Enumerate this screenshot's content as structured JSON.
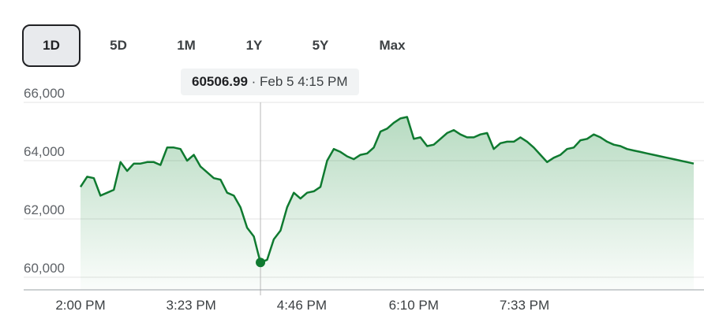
{
  "tabs": [
    {
      "label": "1D",
      "active": true
    },
    {
      "label": "5D",
      "active": false
    },
    {
      "label": "1M",
      "active": false
    },
    {
      "label": "1Y",
      "active": false
    },
    {
      "label": "5Y",
      "active": false
    },
    {
      "label": "Max",
      "active": false
    }
  ],
  "tooltip": {
    "value": "60506.99",
    "separator": " · ",
    "time": "Feb 5 4:15 PM"
  },
  "colors": {
    "line": "#0f7a30",
    "fill": "#1e8e3e",
    "grid": "#e3e3e3",
    "crosshair": "#b8b8b8"
  },
  "chart_data": {
    "type": "area",
    "title": "",
    "xlabel": "",
    "ylabel": "",
    "grid": true,
    "ylim": [
      59600,
      66500
    ],
    "yticks": [
      {
        "value": 66000,
        "label": "66,000"
      },
      {
        "value": 64000,
        "label": "64,000"
      },
      {
        "value": 62000,
        "label": "62,000"
      },
      {
        "value": 60000,
        "label": "60,000"
      }
    ],
    "xlim": [
      0,
      460
    ],
    "xticks": [
      {
        "value": 0,
        "label": "2:00 PM"
      },
      {
        "value": 83,
        "label": "3:23 PM"
      },
      {
        "value": 166,
        "label": "4:46 PM"
      },
      {
        "value": 250,
        "label": "6:10 PM"
      },
      {
        "value": 333,
        "label": "7:33 PM"
      }
    ],
    "highlight": {
      "x": 135,
      "y": 60507
    },
    "series": [
      {
        "x": [
          0,
          5,
          10,
          15,
          20,
          25,
          30,
          35,
          40,
          45,
          50,
          55,
          60,
          65,
          70,
          75,
          80,
          85,
          90,
          95,
          100,
          105,
          110,
          115,
          120,
          125,
          130,
          135,
          140,
          145,
          150,
          155,
          160,
          165,
          170,
          175,
          180,
          185,
          190,
          195,
          200,
          205,
          210,
          215,
          220,
          225,
          230,
          235,
          240,
          245,
          250,
          255,
          260,
          265,
          270,
          275,
          280,
          285,
          290,
          295,
          300,
          305,
          310,
          315,
          320,
          325,
          330,
          335,
          340,
          345,
          350,
          355,
          360,
          365,
          370,
          375,
          380,
          385,
          390,
          395,
          400,
          405,
          410,
          415,
          420,
          425,
          430,
          435,
          440,
          445,
          450,
          455,
          460
        ],
        "y": [
          63100,
          63450,
          63400,
          62800,
          62900,
          63000,
          63950,
          63650,
          63900,
          63900,
          63950,
          63950,
          63850,
          64450,
          64450,
          64400,
          64000,
          64200,
          63800,
          63600,
          63400,
          63350,
          62900,
          62800,
          62400,
          61700,
          61400,
          60500,
          60600,
          61300,
          61600,
          62400,
          62900,
          62700,
          62900,
          62950,
          63100,
          64000,
          64400,
          64300,
          64150,
          64050,
          64200,
          64250,
          64450,
          65000,
          65100,
          65300,
          65450,
          65500,
          64750,
          64800,
          64500,
          64550,
          64750,
          64950,
          65050,
          64900,
          64800,
          64800,
          64900,
          64950,
          64400,
          64600,
          64650,
          64650,
          64800,
          64650,
          64450,
          64200,
          63950,
          64100,
          64200,
          64400,
          64450,
          64700,
          64750,
          64900,
          64800,
          64650,
          64550,
          64500,
          64400,
          64350,
          64300,
          64250,
          64200,
          64150,
          64100,
          64050,
          64000,
          63950,
          63900
        ]
      }
    ]
  }
}
